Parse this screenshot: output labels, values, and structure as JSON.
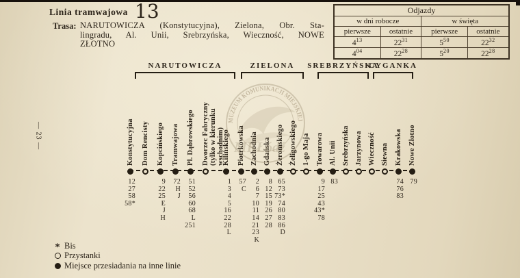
{
  "header": {
    "line_label": "Linia tramwajowa",
    "line_number": "13",
    "route_label": "Trasa:",
    "route_lines": [
      "NARUTOWICZA (Konstytucyjna), Zielona, Obr. Sta-",
      "lingradu, Al. Unii, Srebrzyńska, Wieczność, NOWE",
      "ZŁOTNO"
    ]
  },
  "departures_table": {
    "title": "Odjazdy",
    "column_groups": [
      "w dni robocze",
      "w święta"
    ],
    "sub_columns": [
      "pierwsze",
      "ostatnie",
      "pierwsze",
      "ostatnie"
    ],
    "rows": [
      [
        {
          "hour": "4",
          "min": "13"
        },
        {
          "hour": "22",
          "min": "31"
        },
        {
          "hour": "5",
          "min": "50"
        },
        {
          "hour": "22",
          "min": "32"
        }
      ],
      [
        {
          "hour": "4",
          "min": "04"
        },
        {
          "hour": "22",
          "min": "28"
        },
        {
          "hour": "5",
          "min": "20"
        },
        {
          "hour": "22",
          "min": "28"
        }
      ]
    ]
  },
  "diagram": {
    "sections": [
      {
        "label": "NARUTOWICZA"
      },
      {
        "label": "ZIELONA"
      },
      {
        "label": "SREBRZYŃSKA"
      },
      {
        "label": "CYGANKA"
      }
    ],
    "stations": [
      {
        "name_lines": [
          "Konstytucyjna"
        ],
        "type": "transfer",
        "lines": [
          "12",
          "27",
          "58",
          "58*"
        ]
      },
      {
        "name_lines": [
          "Dom Rencisty"
        ],
        "type": "stop",
        "lines": []
      },
      {
        "name_lines": [
          "Kopcińskiego"
        ],
        "type": "transfer",
        "lines": [
          "9",
          "22",
          "25",
          "E",
          "J",
          "H"
        ]
      },
      {
        "name_lines": [
          "Tramwajowa"
        ],
        "type": "transfer",
        "lines": [
          "72",
          "H",
          "J"
        ]
      },
      {
        "name_lines": [
          "Pl. Dąbrowskiego"
        ],
        "type": "transfer",
        "lines": [
          "51",
          "52",
          "56",
          "60",
          "68",
          "L",
          "251"
        ]
      },
      {
        "name_lines": [
          "Dworzec Fabryczny",
          "(tylko w kierunku",
          "wschodnim)"
        ],
        "type": "stop",
        "lines": []
      },
      {
        "name_lines": [
          "Kilińskiego"
        ],
        "type": "transfer",
        "lines": [
          "1",
          "3",
          "4",
          "5",
          "16",
          "22",
          "28",
          "L"
        ]
      },
      {
        "name_lines": [
          "Piotrkowska"
        ],
        "type": "transfer",
        "lines": [
          "57",
          "C"
        ]
      },
      {
        "name_lines": [
          "Zachodnia"
        ],
        "type": "transfer",
        "lines": [
          "2",
          "6",
          "7",
          "10",
          "11",
          "14",
          "21",
          "23",
          "K"
        ]
      },
      {
        "name_lines": [
          "Gdańska"
        ],
        "type": "transfer",
        "lines": [
          "8",
          "12",
          "15",
          "19",
          "26",
          "27",
          "28"
        ]
      },
      {
        "name_lines": [
          "Żeromskiego"
        ],
        "type": "transfer",
        "lines": [
          "65",
          "73",
          "73*",
          "74",
          "80",
          "83",
          "86",
          "D"
        ]
      },
      {
        "name_lines": [
          "Żeligowskiego"
        ],
        "type": "stop",
        "lines": []
      },
      {
        "name_lines": [
          "1-go Maja"
        ],
        "type": "stop",
        "lines": []
      },
      {
        "name_lines": [
          "Towarowa"
        ],
        "type": "transfer",
        "lines": [
          "9",
          "17",
          "25",
          "43",
          "43*",
          "78"
        ]
      },
      {
        "name_lines": [
          "Al. Unii"
        ],
        "type": "transfer",
        "lines": [
          "83"
        ]
      },
      {
        "name_lines": [
          "Srebrzyńska"
        ],
        "type": "stop",
        "lines": []
      },
      {
        "name_lines": [
          "Jarzynowa"
        ],
        "type": "stop",
        "lines": []
      },
      {
        "name_lines": [
          "Wieczność"
        ],
        "type": "stop",
        "lines": []
      },
      {
        "name_lines": [
          "Siewna"
        ],
        "type": "stop",
        "lines": []
      },
      {
        "name_lines": [
          "Krakowska"
        ],
        "type": "transfer",
        "lines": [
          "74",
          "76",
          "83"
        ]
      },
      {
        "name_lines": [
          "Nowe Złotno"
        ],
        "type": "transfer",
        "lines": [
          "79"
        ]
      }
    ]
  },
  "watermark": {
    "arc_text": "MUZEUM KOMUNIKACJI MIEJSKIEJ",
    "center_text": "MKŁódź"
  },
  "legend": {
    "items": [
      {
        "marker": "asterisk",
        "label": "Bis"
      },
      {
        "marker": "open-circle",
        "label": "Przystanki"
      },
      {
        "marker": "filled-circle",
        "label": "Miejsce przesiadania na inne linie"
      }
    ]
  },
  "page_number": "— 23 —"
}
